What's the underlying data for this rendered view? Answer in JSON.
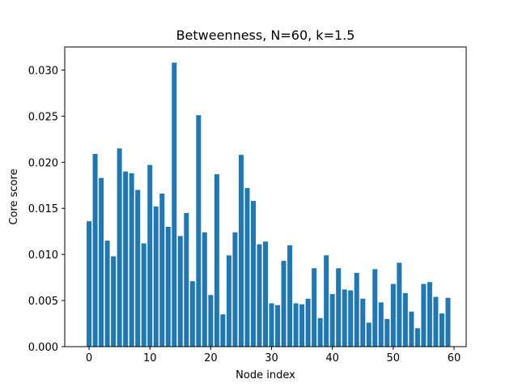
{
  "chart_data": {
    "type": "bar",
    "title": "Betweenness, N=60, k=1.5",
    "xlabel": "Node index",
    "ylabel": "Core score",
    "xlim": [
      -4,
      62
    ],
    "ylim": [
      0,
      0.0325
    ],
    "xticks": [
      0,
      10,
      20,
      30,
      40,
      50,
      60
    ],
    "yticks": [
      0.0,
      0.005,
      0.01,
      0.015,
      0.02,
      0.025,
      0.03
    ],
    "ytick_labels": [
      "0.000",
      "0.005",
      "0.010",
      "0.015",
      "0.020",
      "0.025",
      "0.030"
    ],
    "bar_color": "#1f77b4",
    "grid": false,
    "x": [
      0,
      1,
      2,
      3,
      4,
      5,
      6,
      7,
      8,
      9,
      10,
      11,
      12,
      13,
      14,
      15,
      16,
      17,
      18,
      19,
      20,
      21,
      22,
      23,
      24,
      25,
      26,
      27,
      28,
      29,
      30,
      31,
      32,
      33,
      34,
      35,
      36,
      37,
      38,
      39,
      40,
      41,
      42,
      43,
      44,
      45,
      46,
      47,
      48,
      49,
      50,
      51,
      52,
      53,
      54,
      55,
      56,
      57,
      58,
      59
    ],
    "values": [
      0.0136,
      0.0209,
      0.0183,
      0.0115,
      0.0098,
      0.0215,
      0.019,
      0.0188,
      0.017,
      0.0112,
      0.0197,
      0.0152,
      0.0166,
      0.013,
      0.0308,
      0.012,
      0.0145,
      0.0071,
      0.0251,
      0.0124,
      0.0056,
      0.0187,
      0.0035,
      0.0099,
      0.0124,
      0.0208,
      0.0172,
      0.0158,
      0.0111,
      0.0114,
      0.0047,
      0.0045,
      0.0093,
      0.011,
      0.0047,
      0.0046,
      0.0052,
      0.0085,
      0.0031,
      0.0099,
      0.0057,
      0.0085,
      0.0062,
      0.0061,
      0.008,
      0.0052,
      0.0026,
      0.0084,
      0.0048,
      0.003,
      0.0068,
      0.0091,
      0.0058,
      0.0038,
      0.002,
      0.0068,
      0.007,
      0.0054,
      0.0036,
      0.0053
    ]
  }
}
